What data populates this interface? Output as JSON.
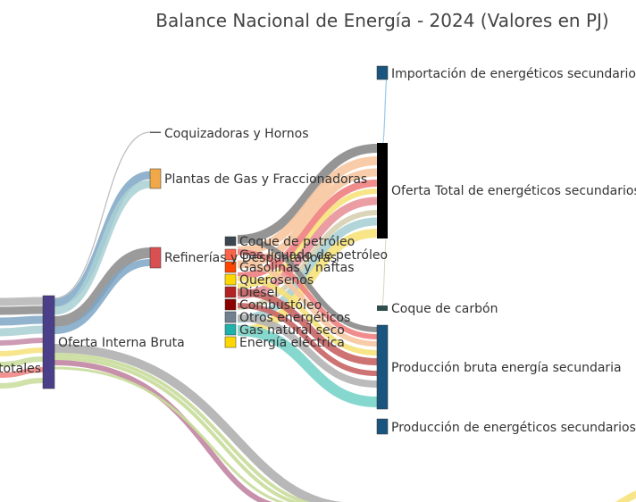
{
  "title": "Balance Nacional de Energía - 2024 (Valores en PJ)",
  "nodes": {
    "totales": {
      "label": "...totales",
      "color": "#b8c2cc"
    },
    "oferta_interna_bruta": {
      "label": "Oferta Interna Bruta",
      "color": "#4b3f8a"
    },
    "coquizadoras": {
      "label": "Coquizadoras y Hornos",
      "color": "#555555"
    },
    "plantas_gas": {
      "label": "Plantas de Gas y Fraccionadoras",
      "color": "#f0a848"
    },
    "refinerias": {
      "label": "Refinerías y Despuntadoras",
      "color": "#d95050"
    },
    "importacion": {
      "label": "Importación de energéticos secundarios",
      "color": "#1a5580"
    },
    "oferta_total_sec": {
      "label": "Oferta Total de energéticos secundarios",
      "color": "#000000"
    },
    "coque_carbon": {
      "label": "Coque de carbón",
      "color": "#2f4f4f"
    },
    "produccion_bruta": {
      "label": "Producción bruta energía secundaria",
      "color": "#1a5580"
    },
    "produccion_sec": {
      "label": "Producción de energéticos secundarios",
      "color": "#1a5580"
    }
  },
  "energeticos": [
    {
      "label": "Coque de petróleo",
      "color": "#3c4650"
    },
    {
      "label": "Gas licuado de petróleo",
      "color": "#ff6347"
    },
    {
      "label": "Gasolinas y naftas",
      "color": "#ff4500"
    },
    {
      "label": "Querosenos",
      "color": "#ffd700"
    },
    {
      "label": "Diésel",
      "color": "#b22222"
    },
    {
      "label": "Combustóleo",
      "color": "#8b0000"
    },
    {
      "label": "Otros energéticos",
      "color": "#708090"
    },
    {
      "label": "Gas natural seco",
      "color": "#20b2aa"
    },
    {
      "label": "Energía eléctrica",
      "color": "#ffd700"
    }
  ],
  "link_colors": {
    "grey": "#8a8a8a",
    "light_grey": "#b4b4b4",
    "steel_blue": "#7ea6c6",
    "pale_teal": "#a9d0d4",
    "peach": "#f7c6a0",
    "salmon": "#f08080",
    "pink": "#e8949a",
    "rose": "#c48aa6",
    "yellow": "#f6e27a",
    "light_green": "#c8dc9a",
    "aqua": "#7fd6cc",
    "brick": "#c86464",
    "sky": "#89c4e8"
  }
}
